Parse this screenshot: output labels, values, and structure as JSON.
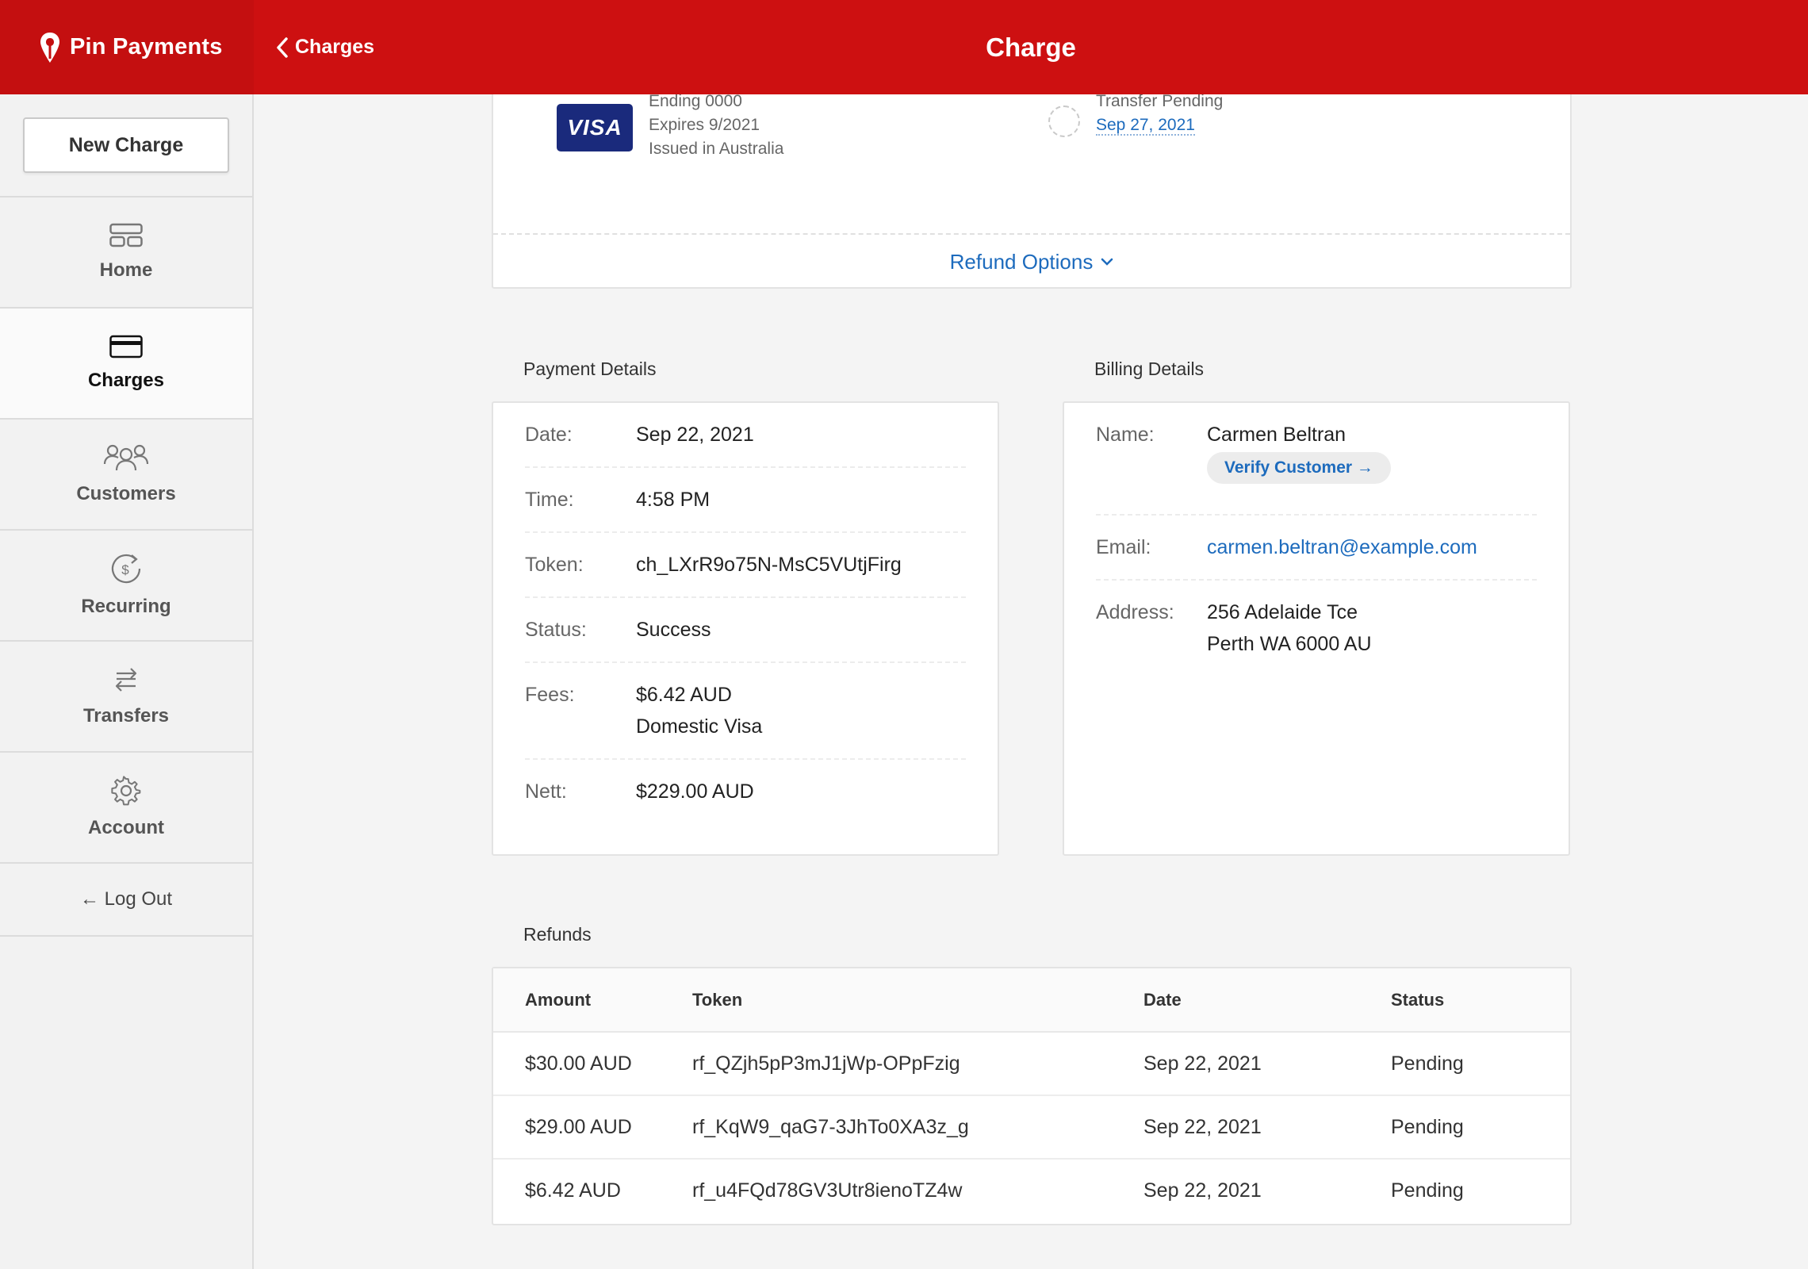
{
  "brand": {
    "name": "Pin Payments"
  },
  "header": {
    "back_label": "Charges",
    "title": "Charge"
  },
  "sidebar": {
    "new_charge_label": "New Charge",
    "items": [
      {
        "label": "Home",
        "icon": "dashboard-icon"
      },
      {
        "label": "Charges",
        "icon": "credit-card-icon",
        "active": true
      },
      {
        "label": "Customers",
        "icon": "users-icon"
      },
      {
        "label": "Recurring",
        "icon": "recurring-icon"
      },
      {
        "label": "Transfers",
        "icon": "transfers-icon"
      },
      {
        "label": "Account",
        "icon": "gear-icon"
      }
    ],
    "logout_label": "← Log Out"
  },
  "card_summary": {
    "brand": "VISA",
    "ending": "Ending 0000",
    "expires": "Expires 9/2021",
    "issued": "Issued in Australia",
    "transfer_status": "Transfer Pending",
    "transfer_date": "Sep 27, 2021",
    "refund_options_label": "Refund Options"
  },
  "payment_details": {
    "title": "Payment Details",
    "date_label": "Date:",
    "date": "Sep 22, 2021",
    "time_label": "Time:",
    "time": "4:58 PM",
    "token_label": "Token:",
    "token": "ch_LXrR9o75N-MsC5VUtjFirg",
    "status_label": "Status:",
    "status": "Success",
    "fees_label": "Fees:",
    "fees_amount": "$6.42 AUD",
    "fees_type": "Domestic Visa",
    "nett_label": "Nett:",
    "nett": "$229.00 AUD"
  },
  "billing_details": {
    "title": "Billing Details",
    "name_label": "Name:",
    "name": "Carmen Beltran",
    "verify_label": "Verify Customer →",
    "email_label": "Email:",
    "email": "carmen.beltran@example.com",
    "address_label": "Address:",
    "address_line1": "256 Adelaide Tce",
    "address_line2": "Perth WA 6000 AU"
  },
  "refunds": {
    "title": "Refunds",
    "columns": [
      "Amount",
      "Token",
      "Date",
      "Status"
    ],
    "rows": [
      {
        "amount": "$30.00 AUD",
        "token": "rf_QZjh5pP3mJ1jWp-OPpFzig",
        "date": "Sep 22, 2021",
        "status": "Pending"
      },
      {
        "amount": "$29.00 AUD",
        "token": "rf_KqW9_qaG7-3JhTo0XA3z_g",
        "date": "Sep 22, 2021",
        "status": "Pending"
      },
      {
        "amount": "$6.42 AUD",
        "token": "rf_u4FQd78GV3Utr8ienoTZ4w",
        "date": "Sep 22, 2021",
        "status": "Pending"
      }
    ]
  },
  "colors": {
    "brand_red": "#cd1011",
    "link_blue": "#1d6bbd",
    "visa_navy": "#1a2a7c"
  }
}
